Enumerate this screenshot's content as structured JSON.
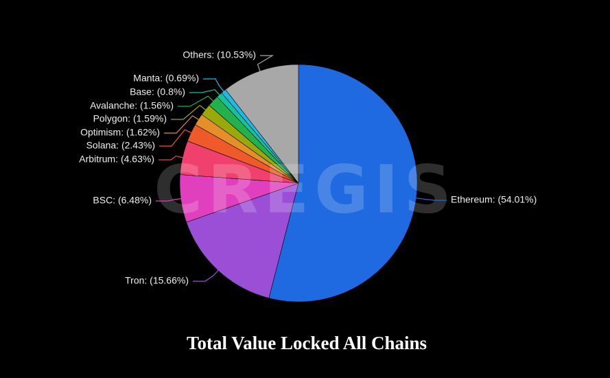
{
  "chart_data": {
    "type": "pie",
    "title": "Total Value Locked All Chains",
    "watermark": "CREGIS",
    "labels": [
      "Ethereum: (54.01%)",
      "Tron: (15.66%)",
      "BSC: (6.48%)",
      "Arbitrum: (4.63%)",
      "Solana: (2.43%)",
      "Optimism: (1.62%)",
      "Polygon: (1.59%)",
      "Avalanche: (1.56%)",
      "Base: (0.8%)",
      "Manta: (0.69%)",
      "Others: (10.53%)"
    ],
    "values": [
      54.01,
      15.66,
      6.48,
      4.63,
      2.43,
      1.62,
      1.59,
      1.56,
      0.8,
      0.69,
      10.53
    ],
    "colors": [
      "#1f6ae0",
      "#9b4fd6",
      "#e040bd",
      "#f0406e",
      "#ef5a2a",
      "#e58f28",
      "#9aa80a",
      "#22b14c",
      "#15c2a0",
      "#22b8e6",
      "#a8a8a8"
    ]
  }
}
